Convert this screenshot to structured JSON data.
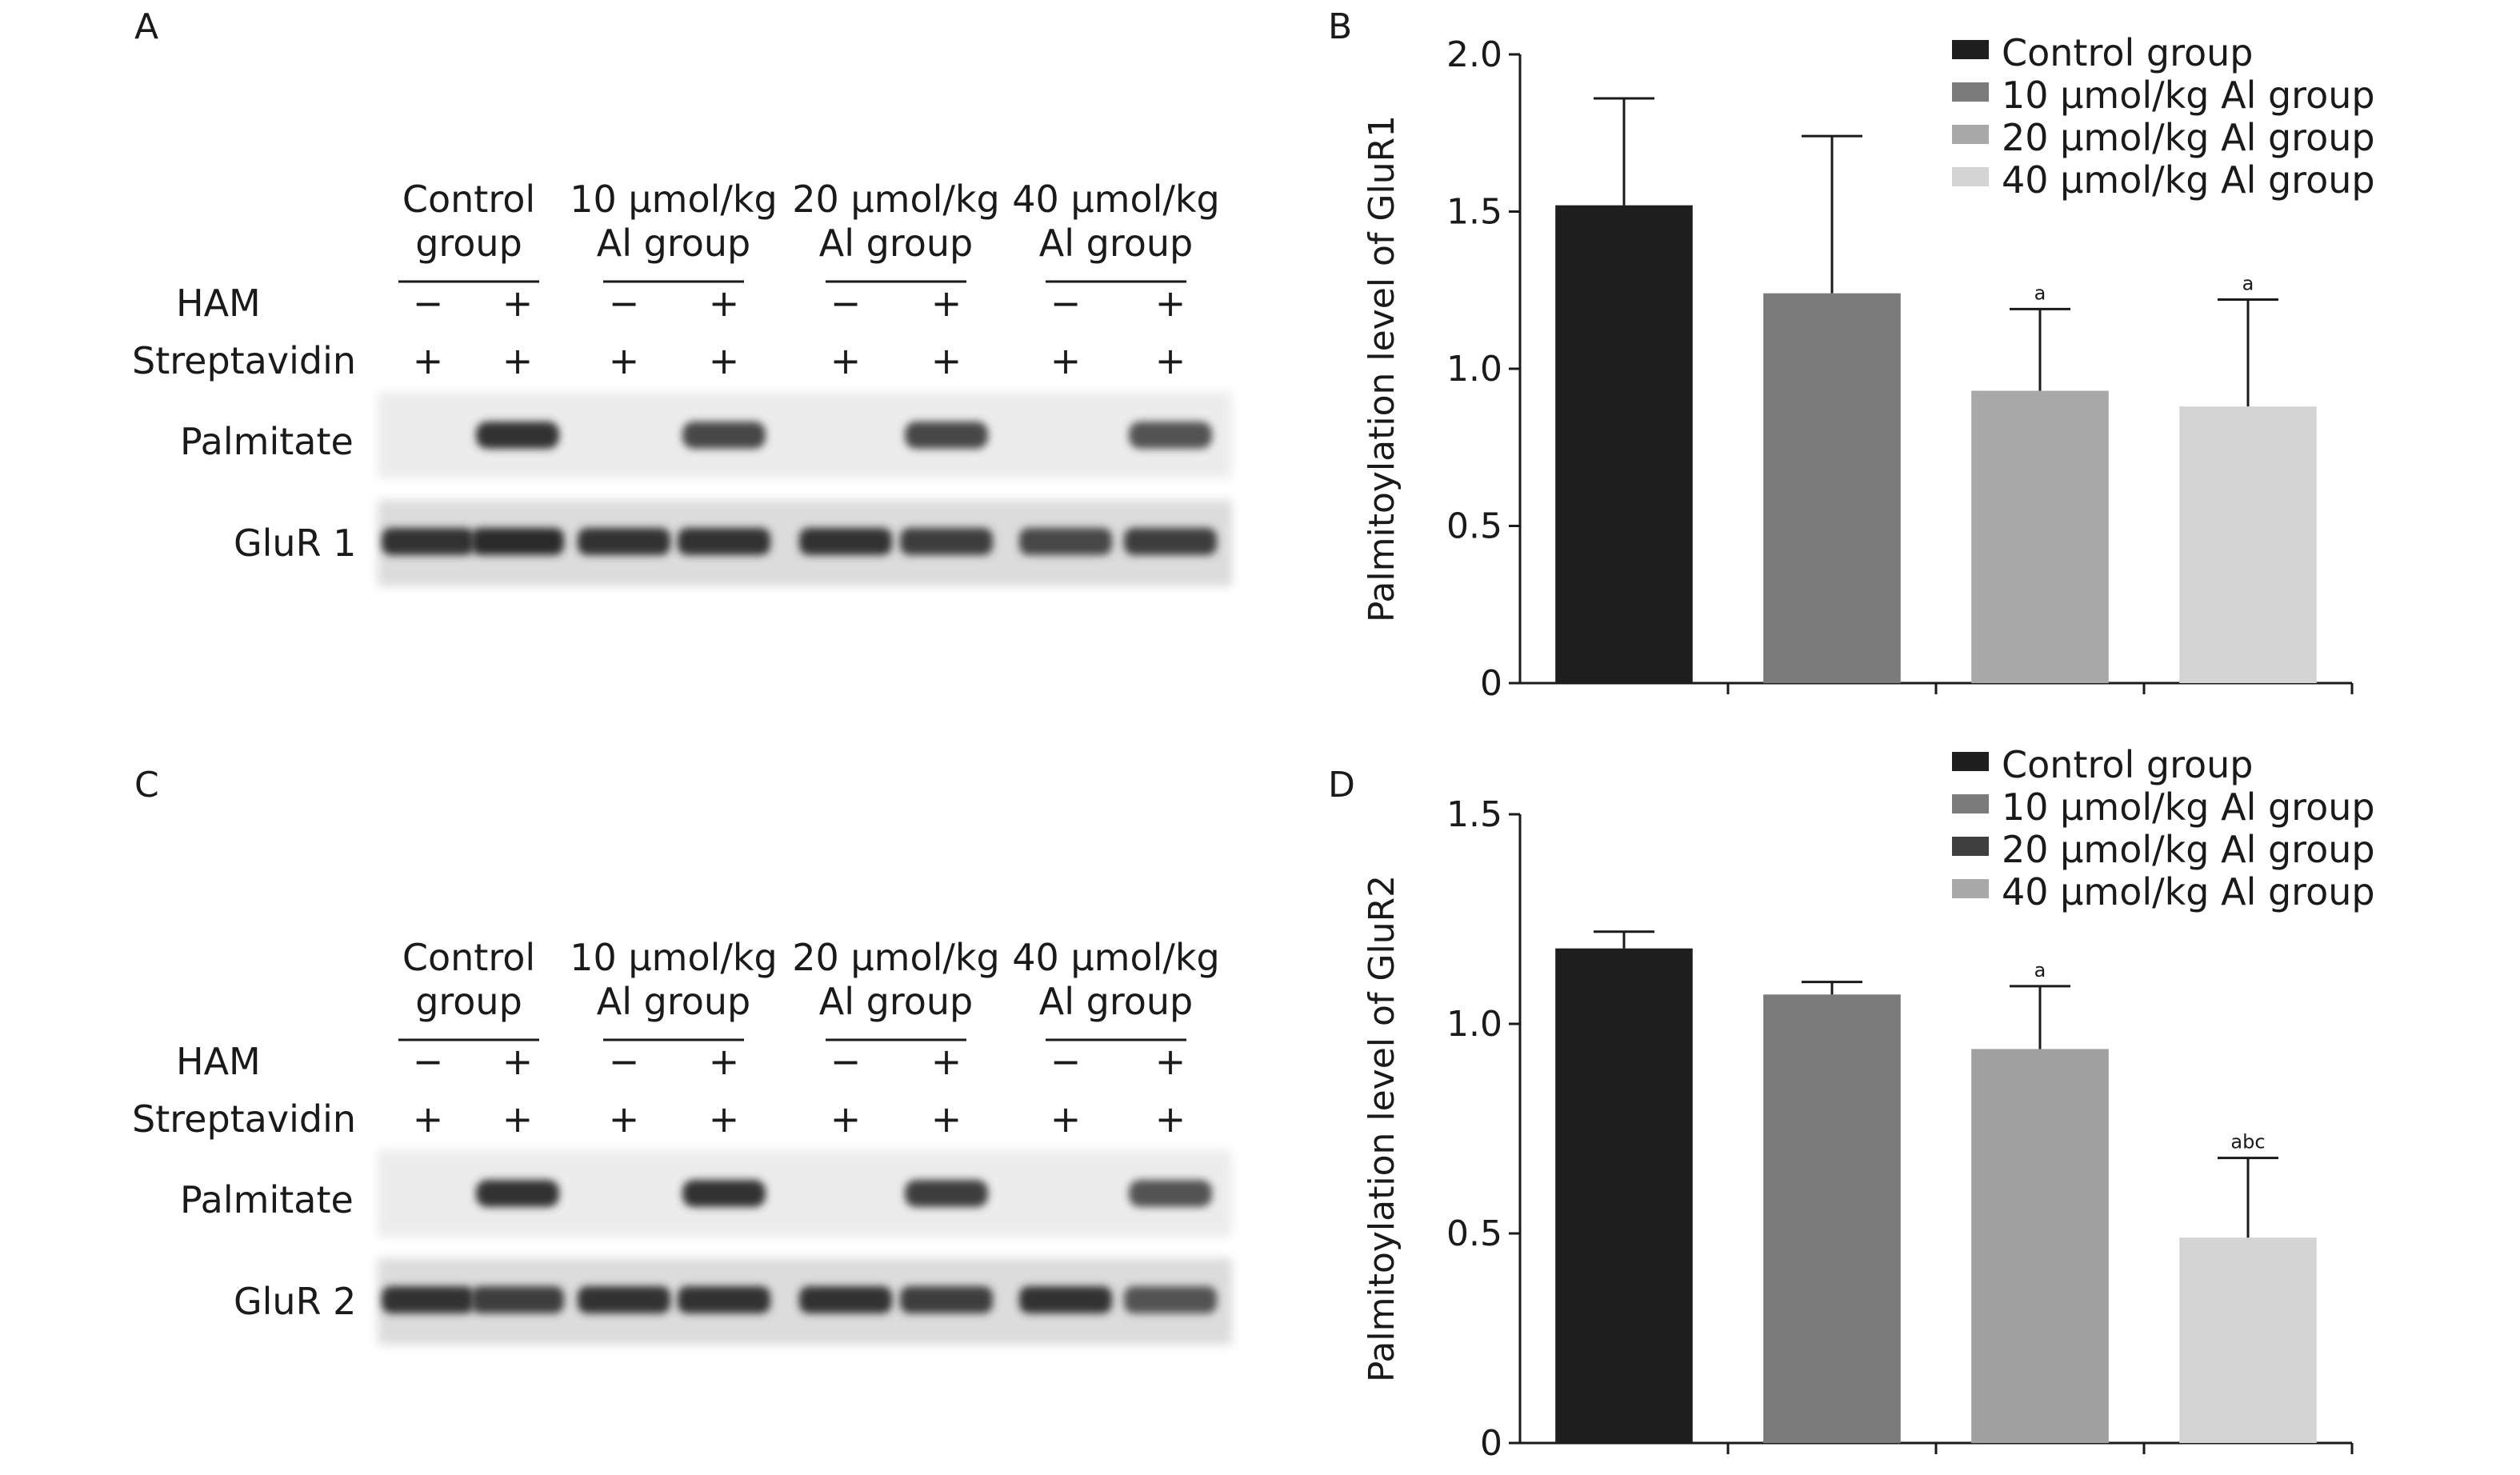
{
  "panels": {
    "A": {
      "letter": "A",
      "groups": [
        {
          "line1": "Control",
          "line2": "group"
        },
        {
          "line1": "10 μmol/kg",
          "line2": "Al group"
        },
        {
          "line1": "20 μmol/kg",
          "line2": "Al group"
        },
        {
          "line1": "40 μmol/kg",
          "line2": "Al group"
        }
      ],
      "row_labels": {
        "ham": "HAM",
        "streptavidin": "Streptavidin",
        "palmitate": "Palmitate",
        "protein": "GluR 1"
      },
      "ham_signs": [
        "−",
        "+",
        "−",
        "+",
        "−",
        "+",
        "−",
        "+"
      ],
      "streptavidin_signs": [
        "+",
        "+",
        "+",
        "+",
        "+",
        "+",
        "+",
        "+"
      ],
      "palmitate_band_intensity": [
        0.0,
        0.85,
        0.0,
        0.75,
        0.0,
        0.75,
        0.0,
        0.7
      ],
      "protein_band_intensity": [
        0.85,
        0.9,
        0.85,
        0.85,
        0.85,
        0.8,
        0.75,
        0.8
      ]
    },
    "C": {
      "letter": "C",
      "groups": [
        {
          "line1": "Control",
          "line2": "group"
        },
        {
          "line1": "10 μmol/kg",
          "line2": "Al group"
        },
        {
          "line1": "20 μmol/kg",
          "line2": "Al group"
        },
        {
          "line1": "40 μmol/kg",
          "line2": "Al group"
        }
      ],
      "row_labels": {
        "ham": "HAM",
        "streptavidin": "Streptavidin",
        "palmitate": "Palmitate",
        "protein": "GluR 2"
      },
      "ham_signs": [
        "−",
        "+",
        "−",
        "+",
        "−",
        "+",
        "−",
        "+"
      ],
      "streptavidin_signs": [
        "+",
        "+",
        "+",
        "+",
        "+",
        "+",
        "+",
        "+"
      ],
      "palmitate_band_intensity": [
        0.0,
        0.85,
        0.0,
        0.85,
        0.0,
        0.8,
        0.0,
        0.7
      ],
      "protein_band_intensity": [
        0.85,
        0.8,
        0.85,
        0.85,
        0.85,
        0.8,
        0.85,
        0.7
      ]
    },
    "B": {
      "letter": "B"
    },
    "D": {
      "letter": "D"
    }
  },
  "chart_data": [
    {
      "panel": "B",
      "type": "bar",
      "categories": [
        "Control group",
        "10 μmol/kg Al group",
        "20 μmol/kg Al group",
        "40 μmol/kg Al group"
      ],
      "values": [
        1.52,
        1.24,
        0.93,
        0.88
      ],
      "errors": [
        0.34,
        0.5,
        0.26,
        0.34
      ],
      "significance": [
        "",
        "",
        "a",
        "a"
      ],
      "colors": [
        "#1e1e1e",
        "#7a7a7a",
        "#a8a8a8",
        "#d4d4d4"
      ],
      "ylabel": "Palmitoylation level of GluR1",
      "ylim": [
        0,
        2.0
      ],
      "yticks": [
        0,
        0.5,
        1.0,
        1.5,
        2.0
      ],
      "ytick_labels": [
        "0",
        "0.5",
        "1.0",
        "1.5",
        "2.0"
      ],
      "legend_position": "top-right",
      "grid": false
    },
    {
      "panel": "D",
      "type": "bar",
      "categories": [
        "Control group",
        "10 μmol/kg Al group",
        "20 μmol/kg Al group",
        "40 μmol/kg Al group"
      ],
      "values": [
        1.18,
        1.07,
        0.94,
        0.49
      ],
      "errors": [
        0.04,
        0.03,
        0.15,
        0.19
      ],
      "significance": [
        "",
        "",
        "a",
        "abc"
      ],
      "colors": [
        "#1e1e1e",
        "#7a7a7a",
        "#a0a0a0",
        "#d4d4d4"
      ],
      "legend_colors": [
        "#1e1e1e",
        "#7a7a7a",
        "#3f3f3f",
        "#a8a8a8"
      ],
      "ylabel": "Palmitoylation level of GluR2",
      "ylim": [
        0,
        1.5
      ],
      "yticks": [
        0,
        0.5,
        1.0,
        1.5
      ],
      "ytick_labels": [
        "0",
        "0.5",
        "1.0",
        "1.5"
      ],
      "legend_position": "top-right",
      "grid": false
    }
  ]
}
